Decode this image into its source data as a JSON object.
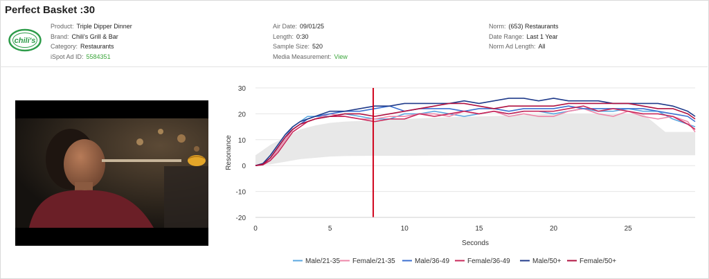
{
  "header": {
    "title": "Perfect Basket :30"
  },
  "brand_logo": {
    "text": "chili's",
    "color": "#2e9c4a"
  },
  "details": {
    "col1": [
      {
        "label": "Product:",
        "value": "Triple Dipper Dinner"
      },
      {
        "label": "Brand:",
        "value": "Chili's Grill & Bar"
      },
      {
        "label": "Category:",
        "value": "Restaurants"
      },
      {
        "label": "iSpot Ad ID:",
        "value": "5584351",
        "link": true
      }
    ],
    "col2": [
      {
        "label": "Air Date:",
        "value": "09/01/25"
      },
      {
        "label": "Length:",
        "value": "0:30"
      },
      {
        "label": "Sample Size:",
        "value": "520"
      },
      {
        "label": "Media Measurement:",
        "value": "View",
        "link": true
      }
    ],
    "col3": [
      {
        "label": "Norm:",
        "value": "(653) Restaurants"
      },
      {
        "label": "Date Range:",
        "value": "Last 1 Year"
      },
      {
        "label": "Norm Ad Length:",
        "value": "All"
      }
    ]
  },
  "chart_data": {
    "type": "line",
    "xlabel": "Seconds",
    "ylabel": "Resonance",
    "xlim": [
      0,
      29.5
    ],
    "ylim": [
      -20,
      30
    ],
    "xticks": [
      0,
      5,
      10,
      15,
      20,
      25
    ],
    "yticks": [
      -20,
      -10,
      0,
      10,
      20,
      30
    ],
    "grid": true,
    "legend_position": "bottom",
    "playhead_x": 7.9,
    "playhead_color": "#d0021b",
    "norm_band": {
      "x": [
        0,
        1,
        2,
        3,
        4,
        5,
        6,
        8,
        10,
        12,
        15,
        18,
        20,
        22,
        24,
        26,
        27.5,
        29.5
      ],
      "lower": [
        0,
        0.5,
        1.5,
        2.5,
        3,
        3.5,
        3.7,
        3.8,
        3.8,
        3.9,
        4,
        4,
        4,
        4,
        4,
        4,
        4,
        4
      ],
      "upper": [
        4,
        8,
        11,
        14,
        15.5,
        16.5,
        17,
        17.5,
        18,
        18.5,
        19,
        19.5,
        20,
        20,
        20,
        20,
        13,
        13
      ]
    },
    "series": [
      {
        "name": "Male/21-35",
        "color": "#5aa7e0",
        "x": [
          0,
          0.5,
          1,
          1.5,
          2,
          2.5,
          3,
          3.5,
          4,
          5,
          6,
          7,
          8,
          9,
          10,
          11,
          12,
          13,
          14,
          15,
          16,
          17,
          18,
          19,
          20,
          21,
          22,
          23,
          24,
          25,
          26,
          27,
          28,
          29,
          29.5
        ],
        "y": [
          0,
          0.5,
          3,
          7,
          11,
          15,
          17,
          19,
          19,
          19,
          20,
          19,
          18,
          18,
          20,
          20,
          21,
          20,
          19,
          20,
          21,
          20,
          21,
          21,
          20,
          21,
          22,
          21,
          21,
          22,
          21,
          21,
          18,
          16,
          15
        ]
      },
      {
        "name": "Female/21-35",
        "color": "#ee86a8",
        "x": [
          0,
          0.5,
          1,
          1.5,
          2,
          2.5,
          3,
          3.5,
          4,
          5,
          6,
          7,
          8,
          9,
          10,
          11,
          12,
          13,
          14,
          15,
          16,
          17,
          18,
          19,
          20,
          21,
          22,
          23,
          24,
          25,
          26,
          27,
          28,
          29,
          29.5
        ],
        "y": [
          0,
          0.3,
          2,
          6,
          10,
          14,
          16,
          17,
          18,
          20,
          19,
          18,
          18,
          19,
          19,
          20,
          20,
          19,
          21,
          20,
          21,
          19,
          20,
          19,
          19,
          21,
          22,
          20,
          19,
          21,
          19,
          18,
          19,
          17,
          13
        ]
      },
      {
        "name": "Male/36-49",
        "color": "#3b6fd0",
        "x": [
          0,
          0.5,
          1,
          1.5,
          2,
          2.5,
          3,
          3.5,
          4,
          5,
          6,
          7,
          8,
          9,
          10,
          11,
          12,
          13,
          14,
          15,
          16,
          17,
          18,
          19,
          20,
          21,
          22,
          23,
          24,
          25,
          26,
          27,
          28,
          29,
          29.5
        ],
        "y": [
          0,
          0.5,
          3,
          7,
          11,
          14,
          16,
          18,
          19,
          20,
          21,
          21,
          22,
          23,
          21,
          22,
          22,
          22,
          21,
          22,
          22,
          21,
          22,
          22,
          22,
          23,
          22,
          22,
          22,
          22,
          22,
          21,
          20,
          19,
          17
        ]
      },
      {
        "name": "Female/36-49",
        "color": "#c8275a",
        "x": [
          0,
          0.5,
          1,
          1.5,
          2,
          2.5,
          3,
          3.5,
          4,
          5,
          6,
          7,
          8,
          9,
          10,
          11,
          12,
          13,
          14,
          15,
          16,
          17,
          18,
          19,
          20,
          21,
          22,
          23,
          24,
          25,
          26,
          27,
          28,
          29,
          29.5
        ],
        "y": [
          0,
          0.3,
          2,
          5,
          9,
          13,
          15,
          17,
          18,
          19,
          19,
          18,
          17,
          18,
          18,
          20,
          19,
          20,
          21,
          20,
          21,
          20,
          21,
          21,
          21,
          22,
          23,
          21,
          22,
          21,
          20,
          20,
          19,
          16,
          14
        ]
      },
      {
        "name": "Male/50+",
        "color": "#1f3a8a",
        "x": [
          0,
          0.5,
          1,
          1.5,
          2,
          2.5,
          3,
          3.5,
          4,
          5,
          6,
          7,
          8,
          9,
          10,
          11,
          12,
          13,
          14,
          15,
          16,
          17,
          18,
          19,
          20,
          21,
          22,
          23,
          24,
          25,
          26,
          27,
          28,
          29,
          29.5
        ],
        "y": [
          0,
          0.8,
          4,
          8,
          12,
          15,
          17,
          18,
          19,
          21,
          21,
          22,
          23,
          23,
          24,
          24,
          24,
          24,
          25,
          24,
          25,
          26,
          26,
          25,
          26,
          25,
          25,
          25,
          24,
          24,
          24,
          24,
          23,
          21,
          19
        ]
      },
      {
        "name": "Female/50+",
        "color": "#b0103f",
        "x": [
          0,
          0.5,
          1,
          1.5,
          2,
          2.5,
          3,
          3.5,
          4,
          5,
          6,
          7,
          8,
          9,
          10,
          11,
          12,
          13,
          14,
          15,
          16,
          17,
          18,
          19,
          20,
          21,
          22,
          23,
          24,
          25,
          26,
          27,
          28,
          29,
          29.5
        ],
        "y": [
          0,
          0.5,
          3,
          7,
          11,
          14,
          16,
          17,
          18,
          19,
          20,
          20,
          19,
          20,
          21,
          22,
          23,
          24,
          24,
          23,
          22,
          23,
          23,
          23,
          23,
          24,
          24,
          24,
          24,
          24,
          23,
          22,
          22,
          20,
          18
        ]
      }
    ]
  }
}
